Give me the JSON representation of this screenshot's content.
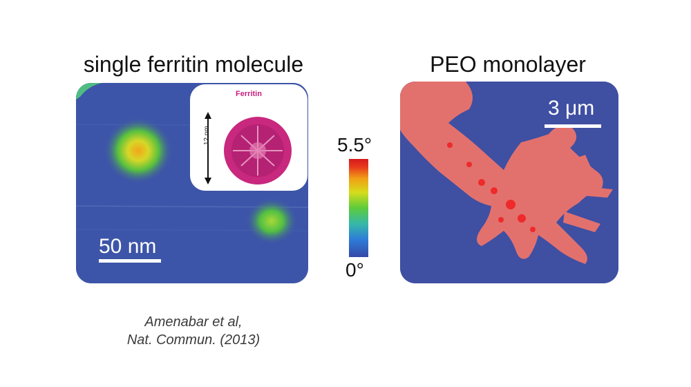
{
  "left": {
    "title": "single ferritin molecule",
    "scale_bar": "50 nm",
    "inset": {
      "title": "Ferritin",
      "length": "12 nm"
    }
  },
  "right": {
    "title": "PEO monolayer",
    "scale_bar": "3 μm"
  },
  "colorbar": {
    "max": "5.5°",
    "min": "0°"
  },
  "credit": {
    "line1": "Amenabar et al,",
    "line2": "Nat. Commun. (2013)"
  },
  "colors": {
    "substrate_blue": "#3d55a8",
    "ferritin_magenta": "#c41e7d",
    "peo_red": "#e2716e"
  }
}
